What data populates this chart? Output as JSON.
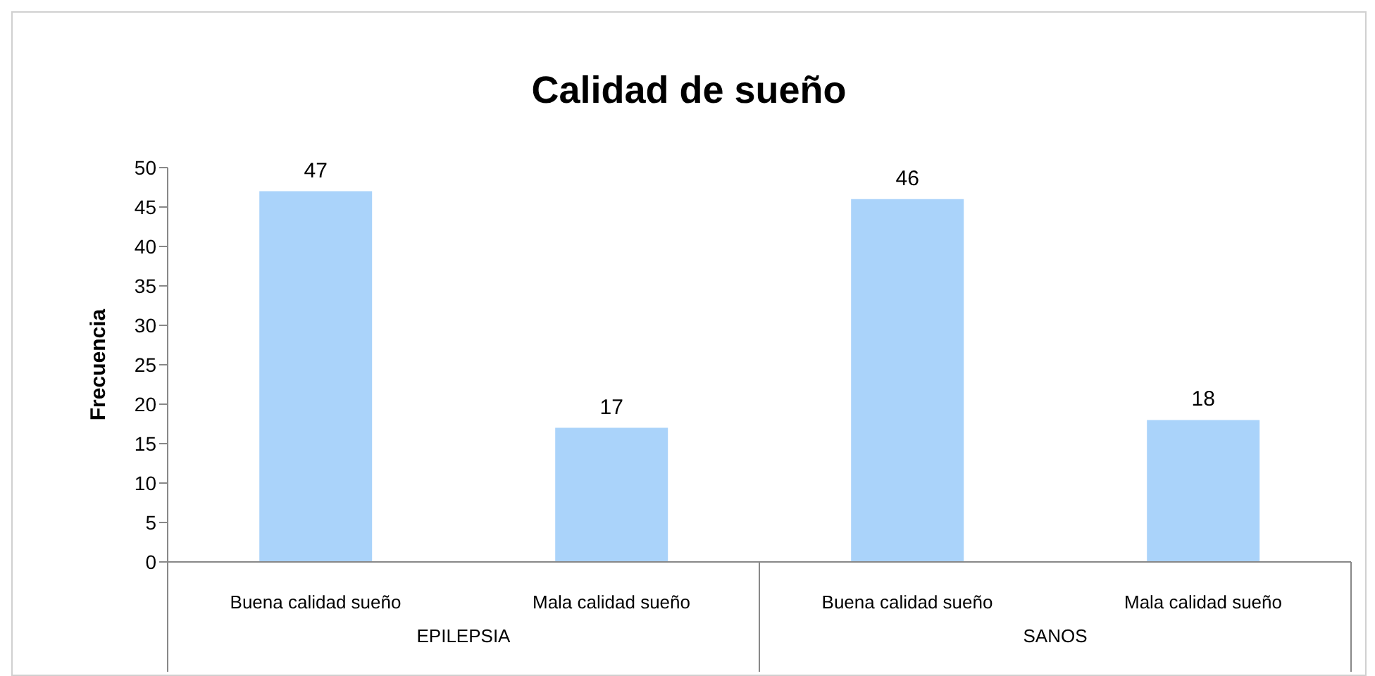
{
  "chart_data": {
    "type": "bar",
    "title": "Calidad de sueño",
    "ylabel": "Frecuencia",
    "categories": [
      "Buena calidad sueño",
      "Mala calidad sueño",
      "Buena calidad sueño",
      "Mala calidad sueño"
    ],
    "values": [
      47,
      17,
      46,
      18
    ],
    "color": "#aad3fa",
    "ylim": [
      0,
      50
    ],
    "yticks": [
      0,
      5,
      10,
      15,
      20,
      25,
      30,
      35,
      40,
      45,
      50
    ],
    "grid": false,
    "legend": false,
    "data_labels": true,
    "annotations": [
      "EPILEPSIA",
      "SANOS"
    ]
  }
}
